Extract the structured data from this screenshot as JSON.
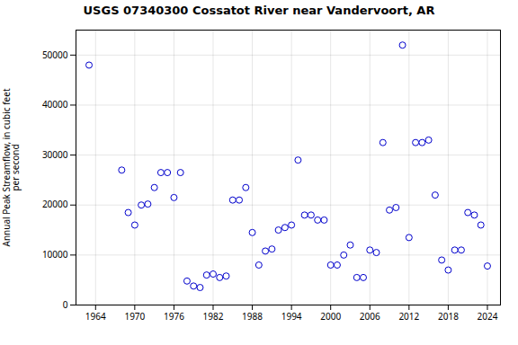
{
  "chart_data": {
    "type": "scatter",
    "title": "USGS 07340300 Cossatot River near Vandervoort, AR",
    "ylabel": "Annual Peak Streamflow, in cubic feet\nper second",
    "x": [
      1963,
      1968,
      1969,
      1970,
      1971,
      1972,
      1973,
      1974,
      1975,
      1976,
      1977,
      1978,
      1979,
      1980,
      1981,
      1982,
      1983,
      1984,
      1985,
      1986,
      1987,
      1988,
      1989,
      1990,
      1991,
      1992,
      1993,
      1994,
      1995,
      1996,
      1997,
      1998,
      1999,
      2000,
      2001,
      2002,
      2003,
      2004,
      2005,
      2006,
      2007,
      2008,
      2009,
      2010,
      2011,
      2012,
      2013,
      2014,
      2015,
      2016,
      2017,
      2018,
      2019,
      2020,
      2021,
      2022,
      2023,
      2024
    ],
    "values": [
      48000,
      27000,
      18500,
      16000,
      20000,
      20200,
      23500,
      26500,
      26500,
      21500,
      26500,
      4800,
      3800,
      3500,
      6000,
      6200,
      5500,
      5800,
      21000,
      21000,
      23500,
      14500,
      8000,
      10800,
      11200,
      15000,
      15500,
      16000,
      29000,
      18000,
      18000,
      17000,
      17000,
      8000,
      8000,
      10000,
      12000,
      5500,
      5500,
      11000,
      10500,
      32500,
      19000,
      19500,
      52000,
      13500,
      32500,
      32500,
      33000,
      22000,
      9000,
      7000,
      11000,
      11000,
      18500,
      18000,
      16000,
      7800
    ],
    "xlim": [
      1961,
      2026
    ],
    "ylim": [
      0,
      55000
    ],
    "xticks": [
      1964,
      1970,
      1976,
      1982,
      1988,
      1994,
      2000,
      2006,
      2012,
      2018,
      2024
    ],
    "yticks": [
      0,
      10000,
      20000,
      30000,
      40000,
      50000
    ],
    "color": "#0000cc",
    "marker": "circle",
    "grid": true
  }
}
